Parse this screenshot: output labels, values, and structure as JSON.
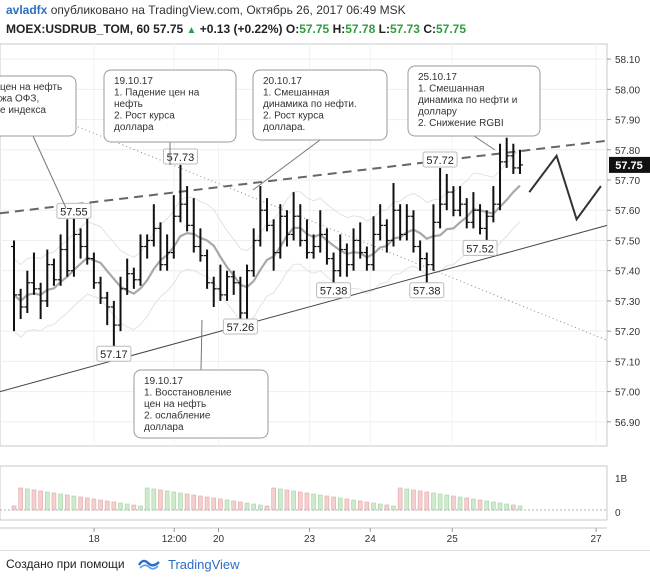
{
  "header": {
    "author": "avladfx",
    "published_text": "опубликовано на TradingView.com, Октябрь 26, 2017 06:49 MSK",
    "symbol": "MOEX:USDRUB_TOM, 60",
    "last": "57.75",
    "change": "+0.13 (+0.22%)",
    "o_label": "O:",
    "o_value": "57.75",
    "h_label": "H:",
    "h_value": "57.78",
    "l_label": "L:",
    "l_value": "57.73",
    "c_label": "C:",
    "c_value": "57.75"
  },
  "footer": {
    "made_with": "Создано при помощи",
    "brand": "TradingView"
  },
  "chart_data": {
    "type": "candlestick",
    "title": "",
    "xlabel": "",
    "ylabel": "",
    "ylim": [
      56.82,
      58.15
    ],
    "y_ticks": [
      "58.10",
      "58.00",
      "57.90",
      "57.80",
      "57.70",
      "57.60",
      "57.50",
      "57.40",
      "57.30",
      "57.20",
      "57.10",
      "57.00",
      "56.90"
    ],
    "x_ticks": [
      "18",
      "12:00",
      "20",
      "23",
      "24",
      "25",
      "27"
    ],
    "current_price_label": "57.75",
    "volume_ticks": [
      "1B",
      "0"
    ],
    "bars": [
      [
        57.48,
        57.22,
        57.32
      ],
      [
        57.32,
        57.26,
        57.28
      ],
      [
        57.28,
        57.38,
        57.36
      ],
      [
        57.36,
        57.44,
        57.34
      ],
      [
        57.34,
        57.26,
        57.3
      ],
      [
        57.3,
        57.45,
        57.42
      ],
      [
        57.42,
        57.4,
        57.37
      ],
      [
        57.37,
        57.5,
        57.47
      ],
      [
        57.47,
        57.55,
        57.4
      ],
      [
        57.4,
        57.56,
        57.52
      ],
      [
        57.52,
        57.46,
        57.48
      ],
      [
        57.48,
        57.6,
        57.44
      ],
      [
        57.44,
        57.38,
        57.36
      ],
      [
        57.36,
        57.34,
        57.31
      ],
      [
        57.31,
        57.24,
        57.28
      ],
      [
        57.28,
        57.17,
        57.22
      ],
      [
        57.22,
        57.36,
        57.34
      ],
      [
        57.34,
        57.42,
        57.39
      ],
      [
        57.39,
        57.36,
        57.37
      ],
      [
        57.37,
        57.5,
        57.48
      ],
      [
        57.48,
        57.46,
        57.5
      ],
      [
        57.5,
        57.6,
        57.54
      ],
      [
        57.54,
        57.45,
        57.42
      ],
      [
        57.42,
        57.5,
        57.46
      ],
      [
        57.46,
        57.63,
        57.58
      ],
      [
        57.58,
        57.73,
        57.62
      ],
      [
        57.62,
        57.66,
        57.55
      ],
      [
        57.55,
        57.62,
        57.48
      ],
      [
        57.48,
        57.52,
        57.45
      ],
      [
        57.45,
        57.38,
        57.36
      ],
      [
        57.36,
        57.3,
        57.34
      ],
      [
        57.34,
        57.4,
        57.32
      ],
      [
        57.32,
        57.36,
        57.38
      ],
      [
        57.38,
        57.34,
        57.36
      ],
      [
        57.36,
        57.28,
        57.26
      ],
      [
        57.26,
        57.38,
        57.4
      ],
      [
        57.4,
        57.52,
        57.5
      ],
      [
        57.5,
        57.66,
        57.6
      ],
      [
        57.6,
        57.62,
        57.55
      ],
      [
        57.55,
        57.42,
        57.46
      ],
      [
        57.46,
        57.6,
        57.58
      ],
      [
        57.58,
        57.5,
        57.52
      ],
      [
        57.52,
        57.64,
        57.58
      ],
      [
        57.58,
        57.6,
        57.5
      ],
      [
        57.5,
        57.55,
        57.46
      ],
      [
        57.46,
        57.5,
        57.48
      ],
      [
        57.48,
        57.58,
        57.52
      ],
      [
        57.52,
        57.48,
        57.44
      ],
      [
        57.44,
        57.38,
        57.4
      ],
      [
        57.4,
        57.5,
        57.47
      ],
      [
        57.47,
        57.4,
        57.42
      ],
      [
        57.42,
        57.52,
        57.5
      ],
      [
        57.5,
        57.54,
        57.46
      ],
      [
        57.46,
        57.44,
        57.42
      ],
      [
        57.42,
        57.56,
        57.52
      ],
      [
        57.52,
        57.6,
        57.55
      ],
      [
        57.55,
        57.48,
        57.5
      ],
      [
        57.5,
        57.67,
        57.6
      ],
      [
        57.6,
        57.56,
        57.52
      ],
      [
        57.52,
        57.6,
        57.58
      ],
      [
        57.58,
        57.52,
        57.48
      ],
      [
        57.48,
        57.42,
        57.44
      ],
      [
        57.44,
        57.38,
        57.42
      ],
      [
        57.42,
        57.6,
        57.56
      ],
      [
        57.56,
        57.72,
        57.62
      ],
      [
        57.62,
        57.7,
        57.66
      ],
      [
        57.66,
        57.64,
        57.6
      ],
      [
        57.6,
        57.66,
        57.62
      ],
      [
        57.62,
        57.6,
        57.56
      ],
      [
        57.56,
        57.64,
        57.6
      ],
      [
        57.6,
        57.58,
        57.54
      ],
      [
        57.54,
        57.52,
        57.58
      ],
      [
        57.58,
        57.66,
        57.62
      ],
      [
        57.62,
        57.8,
        57.76
      ],
      [
        57.76,
        57.82,
        57.78
      ],
      [
        57.78,
        57.8,
        57.74
      ],
      [
        57.74,
        57.78,
        57.75
      ]
    ],
    "lines": [
      {
        "style": "solid",
        "from": [
          0,
          57.0
        ],
        "to": [
          1,
          57.55
        ]
      },
      {
        "style": "dashed",
        "from": [
          0,
          57.59
        ],
        "to": [
          1,
          57.83
        ]
      },
      {
        "style": "dotted",
        "from": [
          0,
          57.98
        ],
        "to": [
          1,
          57.17
        ]
      },
      {
        "style": "projection",
        "points": [
          [
            0.872,
            57.66
          ],
          [
            0.917,
            57.78
          ],
          [
            0.95,
            57.57
          ],
          [
            0.99,
            57.68
          ]
        ]
      }
    ],
    "price_labels": [
      {
        "text": "57.55",
        "i": 9,
        "pos": "above"
      },
      {
        "text": "57.17",
        "i": 15,
        "pos": "below"
      },
      {
        "text": "57.73",
        "i": 25,
        "pos": "above"
      },
      {
        "text": "57.26",
        "i": 34,
        "pos": "below"
      },
      {
        "text": "57.38",
        "i": 48,
        "pos": "below"
      },
      {
        "text": "57.72",
        "i": 64,
        "pos": "above"
      },
      {
        "text": "57.38",
        "i": 62,
        "pos": "below"
      },
      {
        "text": "57.52",
        "i": 70,
        "pos": "below"
      }
    ],
    "annotations": [
      {
        "lines": [
          "19.10.17",
          "1. Падение цен на",
          "нефть",
          "2. Рост курса",
          "доллара"
        ]
      },
      {
        "lines": [
          "20.10.17",
          "1. Смешанная",
          "динамика по нефти.",
          "2. Рост курса",
          "доллара."
        ]
      },
      {
        "lines": [
          "25.10.17",
          "1. Смешанная",
          "динамика по нефти и",
          "доллару",
          "2. Снижение RGBI"
        ]
      },
      {
        "lines": [
          "19.10.17",
          "1. Восстановление",
          "цен на нефть",
          "2. ослабление",
          "доллара"
        ]
      },
      {
        "lines": [
          "цен на нефть",
          "жа ОФЗ,",
          "е индекса"
        ]
      }
    ]
  }
}
